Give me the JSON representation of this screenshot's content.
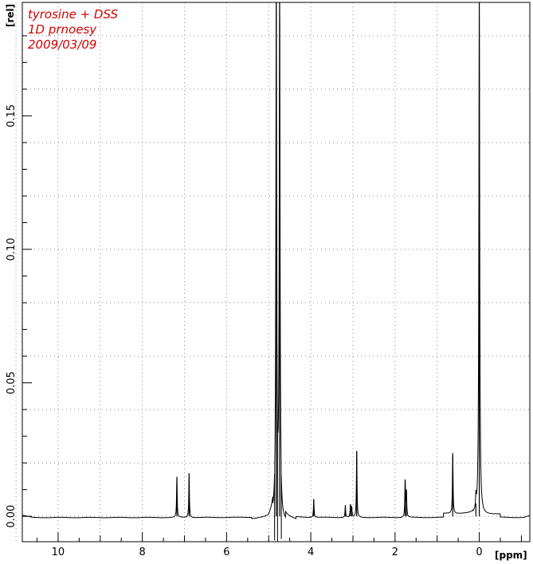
{
  "chart_data": {
    "type": "line",
    "annotations": [
      "tyrosine + DSS",
      "1D prnoesy",
      "2009/03/09"
    ],
    "xlabel": "[ppm]",
    "ylabel": "[rel]",
    "x_reversed": true,
    "xlim": [
      10.85,
      -1.2
    ],
    "ylim": [
      -0.0095,
      0.1925
    ],
    "x_ticks": [
      10,
      8,
      6,
      4,
      2,
      0
    ],
    "x_tick_labels": [
      "10",
      "8",
      "6",
      "4",
      "2",
      "0"
    ],
    "y_ticks": [
      0.0,
      0.05,
      0.1,
      0.15
    ],
    "y_tick_labels": [
      "0.00",
      "0.05",
      "0.10",
      "0.15"
    ],
    "grid": true,
    "peaks": [
      {
        "ppm": 7.18,
        "height": 0.0148
      },
      {
        "ppm": 6.89,
        "height": 0.0162
      },
      {
        "ppm": 4.82,
        "height": 0.1925
      },
      {
        "ppm": 4.74,
        "height": 0.1925
      },
      {
        "ppm": 3.93,
        "height": 0.0065
      },
      {
        "ppm": 3.18,
        "height": 0.0042
      },
      {
        "ppm": 3.06,
        "height": 0.0045
      },
      {
        "ppm": 3.03,
        "height": 0.0038
      },
      {
        "ppm": 2.91,
        "height": 0.0245
      },
      {
        "ppm": 1.76,
        "height": 0.0138
      },
      {
        "ppm": 1.73,
        "height": 0.0095
      },
      {
        "ppm": 0.63,
        "height": 0.0228
      },
      {
        "ppm": 0.08,
        "height": 0.0048
      },
      {
        "ppm": 0.0,
        "height": 0.1925
      }
    ]
  }
}
